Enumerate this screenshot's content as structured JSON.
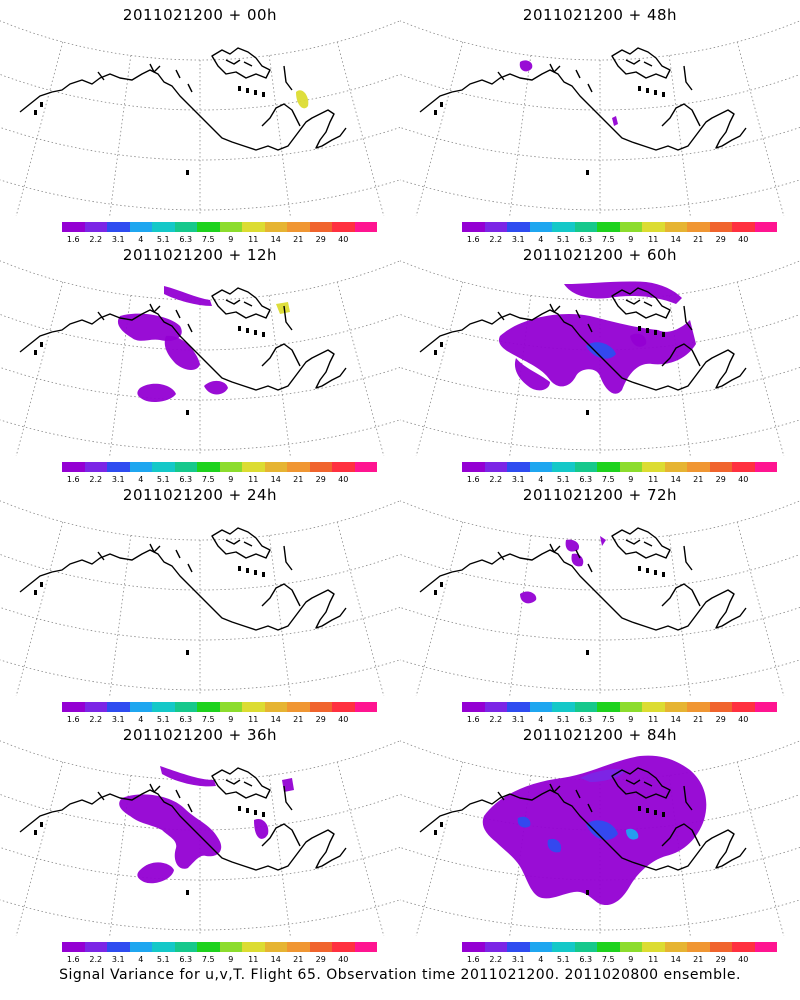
{
  "figure": {
    "caption": "Signal Variance for u,v,T. Flight 65. Observation time 2011021200. 2011020800 ensemble."
  },
  "colorbar": {
    "colors": [
      "#9400d3",
      "#7b26e6",
      "#2e4cf0",
      "#1ea6f0",
      "#14c8c8",
      "#16c88c",
      "#1ed21e",
      "#8cdc2d",
      "#dcdc32",
      "#e6b432",
      "#f09632",
      "#f0642d",
      "#ff3040",
      "#ff1490"
    ],
    "labels": [
      "1.6",
      "2.2",
      "3.1",
      "4",
      "5.1",
      "6.3",
      "7.5",
      "9",
      "11",
      "14",
      "21",
      "29",
      "40"
    ]
  },
  "panels": [
    {
      "title": "2011021200 + 00h",
      "level": 0
    },
    {
      "title": "2011021200 + 48h",
      "level": 4
    },
    {
      "title": "2011021200 + 12h",
      "level": 1
    },
    {
      "title": "2011021200 + 60h",
      "level": 5
    },
    {
      "title": "2011021200 + 24h",
      "level": 2
    },
    {
      "title": "2011021200 + 72h",
      "level": 6
    },
    {
      "title": "2011021200 + 36h",
      "level": 3
    },
    {
      "title": "2011021200 + 84h",
      "level": 7
    }
  ]
}
